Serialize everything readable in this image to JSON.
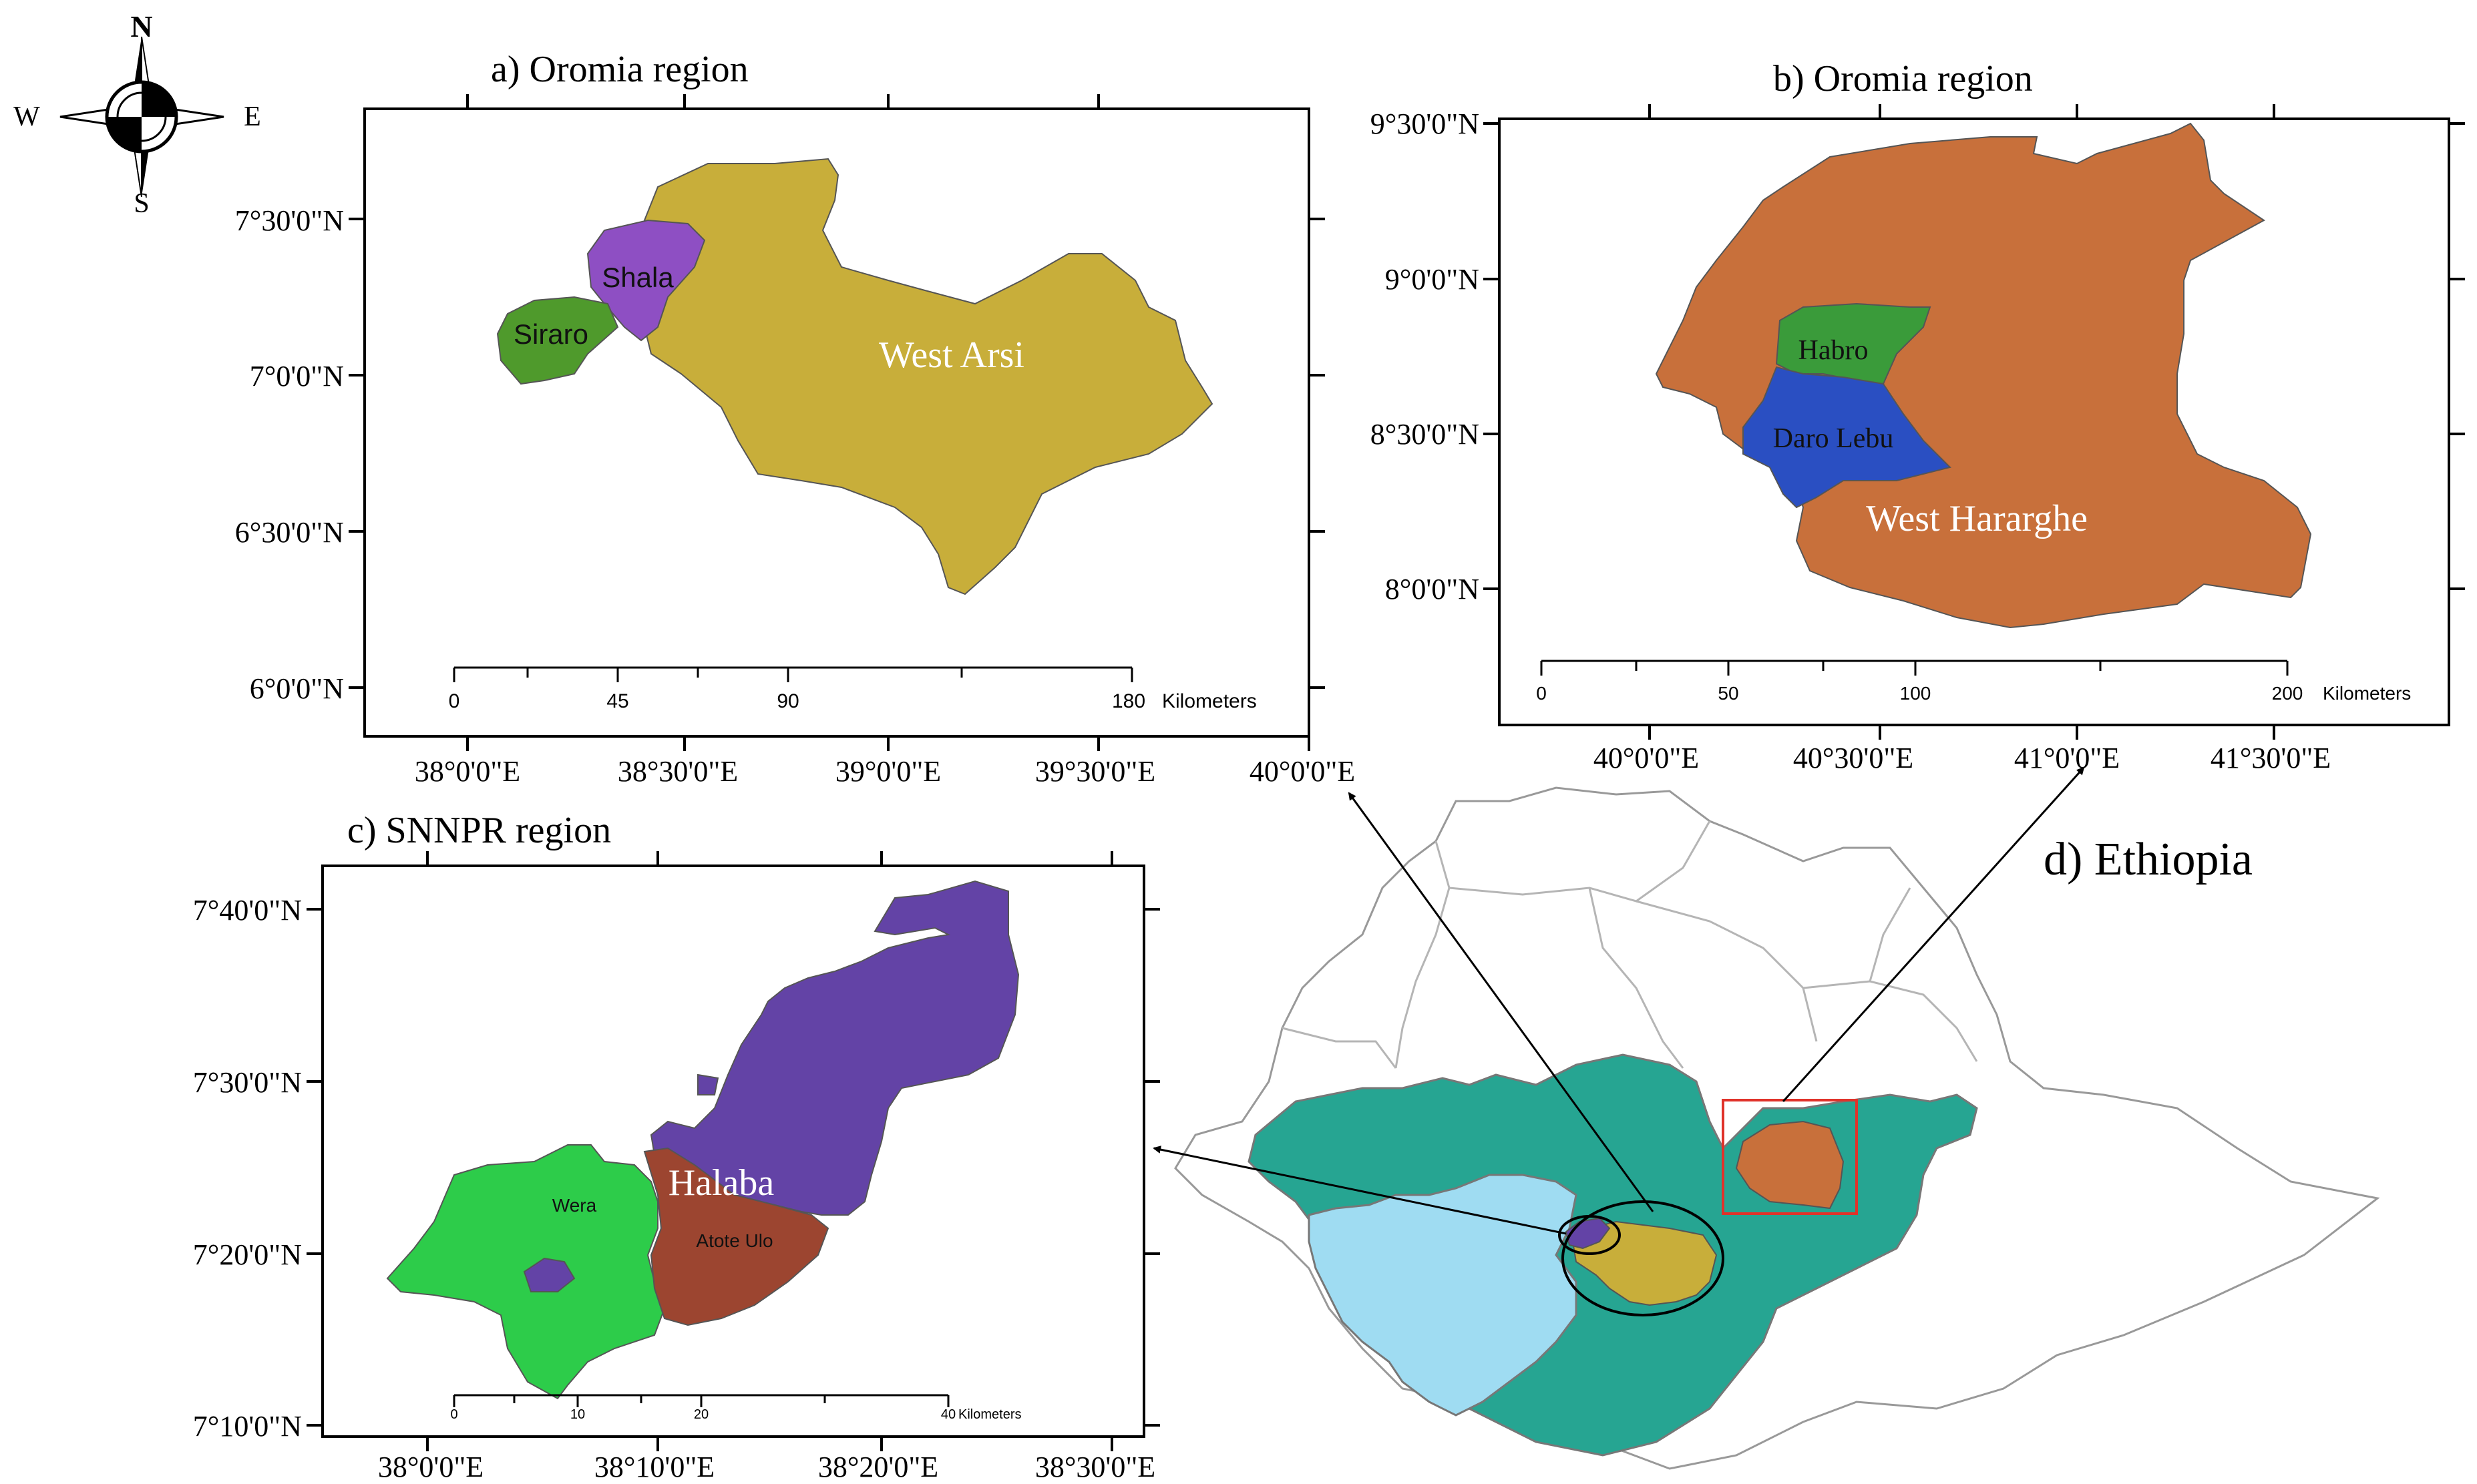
{
  "compass": {
    "n": "N",
    "s": "S",
    "e": "E",
    "w": "W"
  },
  "panel_a": {
    "title": "a) Oromia region",
    "regions": {
      "west_arsi": "West Arsi",
      "shala": "Shala",
      "siraro": "Siraro"
    },
    "lat_labels": [
      "7°30'0\"N",
      "7°0'0\"N",
      "6°30'0\"N",
      "6°0'0\"N"
    ],
    "lon_labels": [
      "38°0'0\"E",
      "38°30'0\"E",
      "39°0'0\"E",
      "39°30'0\"E",
      "40°0'0\"E"
    ],
    "scale": {
      "ticks": [
        "0",
        "45",
        "90",
        "180"
      ],
      "unit": "Kilometers"
    }
  },
  "panel_b": {
    "title": "b) Oromia region",
    "regions": {
      "west_hararghe": "West Hararghe",
      "habro": "Habro",
      "daro_lebu": "Daro Lebu"
    },
    "lat_labels": [
      "9°30'0\"N",
      "9°0'0\"N",
      "8°30'0\"N",
      "8°0'0\"N"
    ],
    "lon_labels": [
      "40°0'0\"E",
      "40°30'0\"E",
      "41°0'0\"E",
      "41°30'0\"E"
    ],
    "scale": {
      "ticks": [
        "0",
        "50",
        "100",
        "200"
      ],
      "unit": "Kilometers"
    }
  },
  "panel_c": {
    "title": "c) SNNPR region",
    "regions": {
      "halaba": "Halaba",
      "wera": "Wera",
      "atote_ulo": "Atote Ulo"
    },
    "lat_labels": [
      "7°40'0\"N",
      "7°30'0\"N",
      "7°20'0\"N",
      "7°10'0\"N"
    ],
    "lon_labels": [
      "38°0'0\"E",
      "38°10'0\"E",
      "38°20'0\"E",
      "38°30'0\"E"
    ],
    "scale": {
      "ticks": [
        "0",
        "10",
        "20",
        "40"
      ],
      "unit": "Kilometers"
    }
  },
  "panel_d": {
    "title": "d) Ethiopia"
  },
  "colors": {
    "west_arsi": "#c8ae3a",
    "shala": "#8e4fc3",
    "siraro": "#4f9a2c",
    "west_hararghe": "#c8703b",
    "habro": "#3a9b3a",
    "daro_lebu": "#2a4fc2",
    "halaba": "#6343a6",
    "wera": "#2dcc4a",
    "atote_ulo": "#9c4530",
    "oromia": "#26a592",
    "snnpr": "#9fdcf2",
    "box": "#e0322a"
  }
}
